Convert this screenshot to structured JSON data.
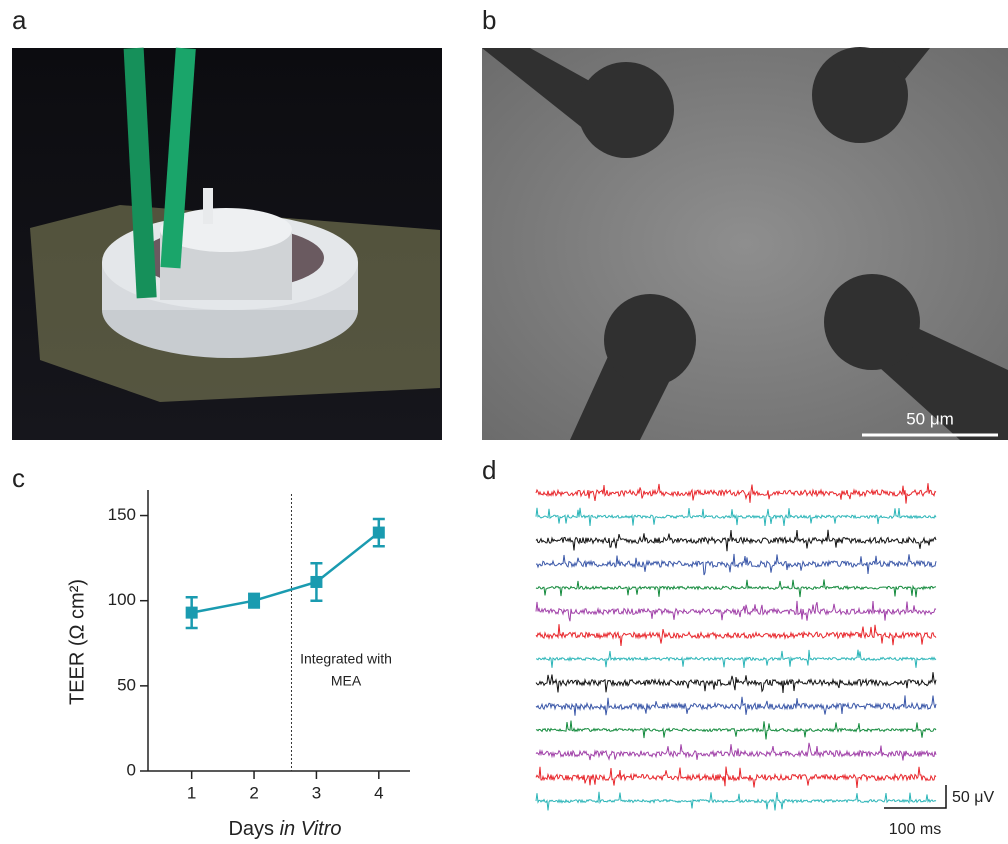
{
  "panels": {
    "a": {
      "label": "a"
    },
    "b": {
      "label": "b",
      "scale_bar": "50 μm"
    },
    "c": {
      "label": "c"
    },
    "d": {
      "label": "d",
      "scale_y": "50 μV",
      "scale_x": "100 ms",
      "trace_colors": [
        "#e8262b",
        "#2bb5b8",
        "#111111",
        "#3a57a8",
        "#138a3c",
        "#a040a8",
        "#e8262b",
        "#2bb5b8",
        "#111111",
        "#3a57a8",
        "#138a3c",
        "#a040a8",
        "#e8262b",
        "#2bb5b8"
      ]
    }
  },
  "chart_data": {
    "type": "line",
    "x": [
      1,
      2,
      3,
      4
    ],
    "values": [
      93,
      100,
      111,
      140
    ],
    "errors": [
      9,
      4,
      11,
      8
    ],
    "color": "#1a9bb0",
    "xlim": [
      0.3,
      4.5
    ],
    "ylim": [
      0,
      165
    ],
    "xticks": [
      1,
      2,
      3,
      4
    ],
    "yticks": [
      0,
      50,
      100,
      150
    ],
    "y_label": "TEER (Ω cm²)",
    "x_label": [
      "Days ",
      "in Vitro"
    ],
    "divider_x": 2.6,
    "annotation": [
      "Integrated with",
      "MEA"
    ]
  }
}
